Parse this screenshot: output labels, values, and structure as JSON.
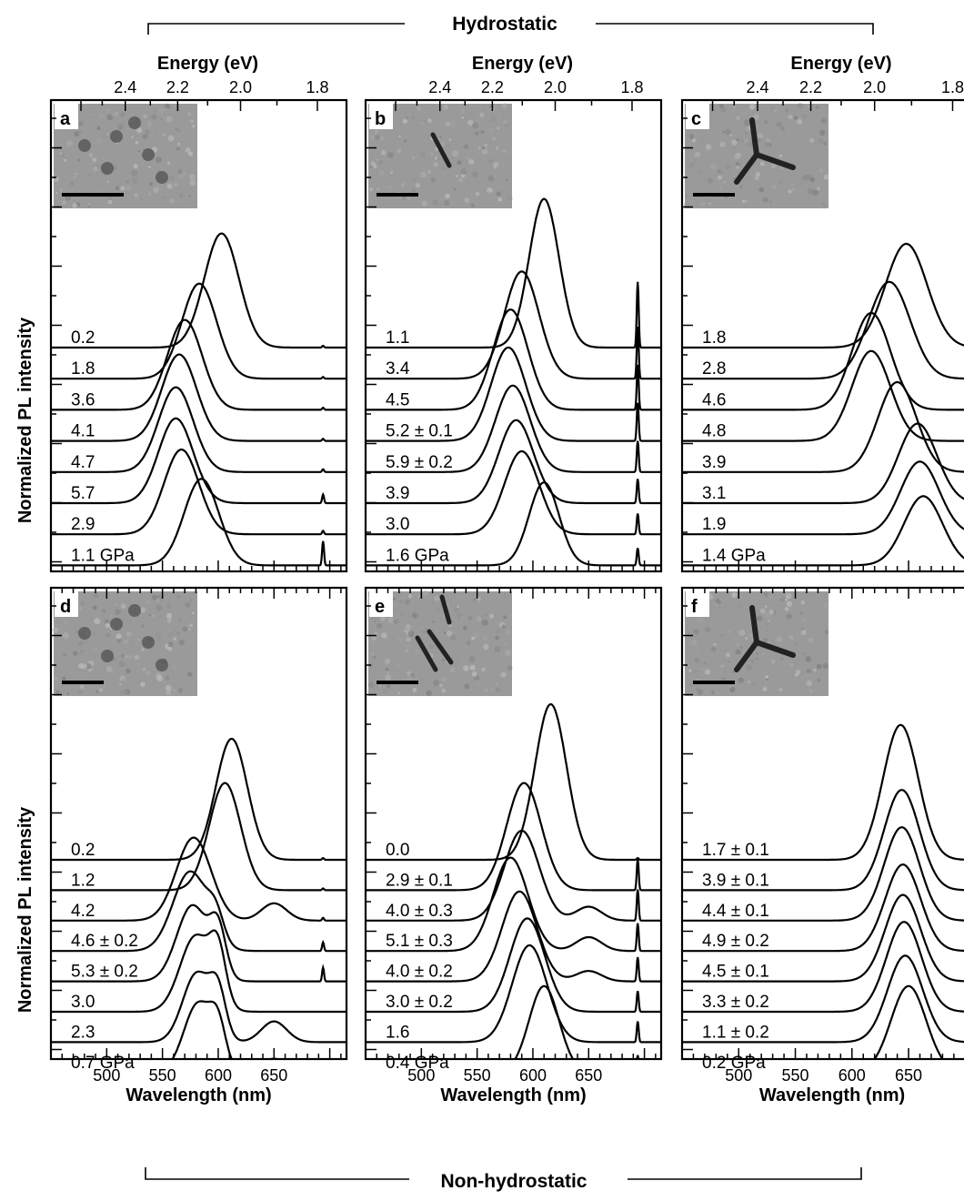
{
  "figure": {
    "group_top": "Hydrostatic",
    "group_bottom": "Non-hydrostatic",
    "ylabel": "Normalized PL intensity"
  },
  "chart_data": [
    {
      "panel": "a",
      "type": "line",
      "xlabel": "Wavelength (nm)",
      "top_xlabel": "Energy (eV)",
      "xticklabels": [
        "500",
        "550",
        "600",
        "650"
      ],
      "energy_ticklabels": [
        "2.4",
        "2.2",
        "2.0",
        "1.8"
      ],
      "show_bottom_ticklabels": false,
      "show_top_axis": true,
      "xlim": [
        450,
        715
      ],
      "series": [
        {
          "name": "0.2",
          "peak_nm": 603,
          "width_nm": 22,
          "amplitude": 3.3,
          "extra": [
            {
              "nm": 694,
              "amp": 0.05,
              "w": 1.2
            }
          ]
        },
        {
          "name": "1.8",
          "peak_nm": 583,
          "width_nm": 22,
          "amplitude": 2.75,
          "extra": [
            {
              "nm": 694,
              "amp": 0.05,
              "w": 1.2
            }
          ]
        },
        {
          "name": "3.6",
          "peak_nm": 570,
          "width_nm": 22,
          "amplitude": 2.6,
          "extra": [
            {
              "nm": 694,
              "amp": 0.06,
              "w": 1.2
            }
          ]
        },
        {
          "name": "4.1",
          "peak_nm": 565,
          "width_nm": 22,
          "amplitude": 2.5,
          "extra": [
            {
              "nm": 694,
              "amp": 0.06,
              "w": 1.2
            }
          ]
        },
        {
          "name": "4.7",
          "peak_nm": 562,
          "width_nm": 22,
          "amplitude": 2.45,
          "extra": [
            {
              "nm": 694,
              "amp": 0.08,
              "w": 1.2
            }
          ]
        },
        {
          "name": "5.7",
          "peak_nm": 562,
          "width_nm": 22,
          "amplitude": 2.45,
          "extra": [
            {
              "nm": 694,
              "amp": 0.25,
              "w": 1.2
            }
          ]
        },
        {
          "name": "2.9",
          "peak_nm": 567,
          "width_nm": 22,
          "amplitude": 2.45,
          "extra": [
            {
              "nm": 694,
              "amp": 0.1,
              "w": 1.2
            }
          ]
        },
        {
          "name": "1.1 GPa",
          "peak_nm": 585,
          "width_nm": 22,
          "amplitude": 2.5,
          "extra": [
            {
              "nm": 694,
              "amp": 0.7,
              "w": 1.2
            }
          ]
        }
      ]
    },
    {
      "panel": "b",
      "type": "line",
      "xlabel": "Wavelength (nm)",
      "top_xlabel": "Energy (eV)",
      "xticklabels": [
        "500",
        "550",
        "600",
        "650"
      ],
      "energy_ticklabels": [
        "2.4",
        "2.2",
        "2.0",
        "1.8"
      ],
      "show_bottom_ticklabels": false,
      "show_top_axis": true,
      "xlim": [
        450,
        715
      ],
      "series": [
        {
          "name": "1.1",
          "peak_nm": 610,
          "width_nm": 19,
          "amplitude": 4.3,
          "extra": [
            {
              "nm": 694,
              "amp": 1.9,
              "w": 1.2
            }
          ]
        },
        {
          "name": "3.4",
          "peak_nm": 590,
          "width_nm": 22,
          "amplitude": 3.1,
          "extra": [
            {
              "nm": 694,
              "amp": 1.5,
              "w": 1.2
            }
          ]
        },
        {
          "name": "4.5",
          "peak_nm": 580,
          "width_nm": 22,
          "amplitude": 2.9,
          "extra": [
            {
              "nm": 694,
              "amp": 1.3,
              "w": 1.2
            }
          ]
        },
        {
          "name": "5.2 ± 0.1",
          "peak_nm": 578,
          "width_nm": 22,
          "amplitude": 2.7,
          "extra": [
            {
              "nm": 694,
              "amp": 1.1,
              "w": 1.2
            }
          ]
        },
        {
          "name": "5.9 ± 0.2",
          "peak_nm": 582,
          "width_nm": 22,
          "amplitude": 2.5,
          "extra": [
            {
              "nm": 694,
              "amp": 0.9,
              "w": 1.2
            }
          ]
        },
        {
          "name": "3.9",
          "peak_nm": 585,
          "width_nm": 22,
          "amplitude": 2.4,
          "extra": [
            {
              "nm": 694,
              "amp": 0.7,
              "w": 1.2
            }
          ]
        },
        {
          "name": "3.0",
          "peak_nm": 590,
          "width_nm": 22,
          "amplitude": 2.4,
          "extra": [
            {
              "nm": 694,
              "amp": 0.6,
              "w": 1.2
            }
          ]
        },
        {
          "name": "1.6 GPa",
          "peak_nm": 610,
          "width_nm": 19,
          "amplitude": 2.4,
          "extra": [
            {
              "nm": 694,
              "amp": 0.5,
              "w": 1.2
            }
          ]
        }
      ]
    },
    {
      "panel": "c",
      "type": "line",
      "xlabel": "Wavelength (nm)",
      "top_xlabel": "Energy (eV)",
      "xticklabels": [
        "500",
        "550",
        "600",
        "650"
      ],
      "energy_ticklabels": [
        "2.4",
        "2.2",
        "2.0",
        "1.8"
      ],
      "show_bottom_ticklabels": false,
      "show_top_axis": true,
      "xlim": [
        450,
        715
      ],
      "series": [
        {
          "name": "1.8",
          "peak_nm": 648,
          "width_nm": 26,
          "amplitude": 3.0,
          "extra": [
            {
              "nm": 715,
              "amp": 0.8,
              "w": 3
            }
          ]
        },
        {
          "name": "2.8",
          "peak_nm": 633,
          "width_nm": 26,
          "amplitude": 2.8,
          "extra": [
            {
              "nm": 715,
              "amp": 0.8,
              "w": 3
            }
          ]
        },
        {
          "name": "4.6",
          "peak_nm": 617,
          "width_nm": 24,
          "amplitude": 2.8,
          "extra": [
            {
              "nm": 715,
              "amp": 0.8,
              "w": 3
            }
          ]
        },
        {
          "name": "4.8",
          "peak_nm": 617,
          "width_nm": 24,
          "amplitude": 2.6,
          "extra": [
            {
              "nm": 715,
              "amp": 0.8,
              "w": 3
            }
          ]
        },
        {
          "name": "3.9",
          "peak_nm": 640,
          "width_nm": 24,
          "amplitude": 2.6,
          "extra": [
            {
              "nm": 715,
              "amp": 0.8,
              "w": 3
            }
          ]
        },
        {
          "name": "3.1",
          "peak_nm": 658,
          "width_nm": 24,
          "amplitude": 2.3,
          "extra": [
            {
              "nm": 715,
              "amp": 0.8,
              "w": 3
            }
          ]
        },
        {
          "name": "1.9",
          "peak_nm": 660,
          "width_nm": 24,
          "amplitude": 2.1,
          "extra": [
            {
              "nm": 715,
              "amp": 0.8,
              "w": 3
            }
          ]
        },
        {
          "name": "1.4 GPa",
          "peak_nm": 663,
          "width_nm": 24,
          "amplitude": 2.0,
          "extra": [
            {
              "nm": 715,
              "amp": 0.8,
              "w": 3
            }
          ]
        }
      ]
    },
    {
      "panel": "d",
      "type": "line",
      "xlabel": "Wavelength (nm)",
      "top_xlabel": "",
      "xticklabels": [
        "500",
        "550",
        "600",
        "650"
      ],
      "energy_ticklabels": [],
      "show_bottom_ticklabels": true,
      "show_top_axis": false,
      "xlim": [
        450,
        715
      ],
      "series": [
        {
          "name": "0.2",
          "peak_nm": 612,
          "width_nm": 20,
          "amplitude": 3.5,
          "extra": [
            {
              "nm": 694,
              "amp": 0.05,
              "w": 1.2
            }
          ]
        },
        {
          "name": "1.2",
          "peak_nm": 606,
          "width_nm": 20,
          "amplitude": 3.1,
          "extra": [
            {
              "nm": 694,
              "amp": 0.05,
              "w": 1.2
            }
          ]
        },
        {
          "name": "4.2",
          "peak_nm": 578,
          "width_nm": 22,
          "amplitude": 2.4,
          "extra": [
            {
              "nm": 650,
              "amp": 0.5,
              "w": 16
            },
            {
              "nm": 694,
              "amp": 0.08,
              "w": 1.2
            }
          ]
        },
        {
          "name": "4.6 ± 0.2",
          "peak_nm": 575,
          "width_nm": 22,
          "amplitude": 2.3,
          "extra": [
            {
              "nm": 598,
              "amp": 0.7,
              "w": 10
            },
            {
              "nm": 694,
              "amp": 0.25,
              "w": 1.2
            }
          ]
        },
        {
          "name": "5.3 ± 0.2",
          "peak_nm": 577,
          "width_nm": 20,
          "amplitude": 2.2,
          "extra": [
            {
              "nm": 600,
              "amp": 1.3,
              "w": 10
            },
            {
              "nm": 694,
              "amp": 0.4,
              "w": 1.2
            }
          ]
        },
        {
          "name": "3.0",
          "peak_nm": 580,
          "width_nm": 20,
          "amplitude": 2.2,
          "extra": [
            {
              "nm": 600,
              "amp": 1.4,
              "w": 10
            }
          ]
        },
        {
          "name": "2.3",
          "peak_nm": 581,
          "width_nm": 18,
          "amplitude": 2.0,
          "extra": [
            {
              "nm": 600,
              "amp": 1.2,
              "w": 10
            },
            {
              "nm": 650,
              "amp": 0.6,
              "w": 16
            }
          ]
        },
        {
          "name": "0.7 GPa",
          "peak_nm": 582,
          "width_nm": 18,
          "amplitude": 2.0,
          "extra": [
            {
              "nm": 600,
              "amp": 1.1,
              "w": 10
            },
            {
              "nm": 650,
              "amp": 0.4,
              "w": 16
            },
            {
              "nm": 694,
              "amp": 0.1,
              "w": 1.2
            }
          ]
        }
      ]
    },
    {
      "panel": "e",
      "type": "line",
      "xlabel": "Wavelength (nm)",
      "top_xlabel": "",
      "xticklabels": [
        "500",
        "550",
        "600",
        "650"
      ],
      "energy_ticklabels": [],
      "show_bottom_ticklabels": true,
      "show_top_axis": false,
      "xlim": [
        450,
        715
      ],
      "series": [
        {
          "name": "0.0",
          "peak_nm": 616,
          "width_nm": 20,
          "amplitude": 4.5,
          "extra": [
            {
              "nm": 694,
              "amp": 0.05,
              "w": 1.2
            }
          ]
        },
        {
          "name": "2.9 ± 0.1",
          "peak_nm": 592,
          "width_nm": 22,
          "amplitude": 3.1,
          "extra": [
            {
              "nm": 694,
              "amp": 0.9,
              "w": 1.2
            }
          ]
        },
        {
          "name": "4.0 ± 0.3",
          "peak_nm": 590,
          "width_nm": 22,
          "amplitude": 2.6,
          "extra": [
            {
              "nm": 650,
              "amp": 0.4,
              "w": 16
            },
            {
              "nm": 694,
              "amp": 0.9,
              "w": 1.2
            }
          ]
        },
        {
          "name": "5.1 ± 0.3",
          "peak_nm": 580,
          "width_nm": 22,
          "amplitude": 2.7,
          "extra": [
            {
              "nm": 650,
              "amp": 0.4,
              "w": 16
            },
            {
              "nm": 694,
              "amp": 0.8,
              "w": 1.2
            }
          ]
        },
        {
          "name": "4.0 ± 0.2",
          "peak_nm": 588,
          "width_nm": 22,
          "amplitude": 2.6,
          "extra": [
            {
              "nm": 650,
              "amp": 0.3,
              "w": 16
            },
            {
              "nm": 694,
              "amp": 0.7,
              "w": 1.2
            }
          ]
        },
        {
          "name": "3.0 ± 0.2",
          "peak_nm": 595,
          "width_nm": 22,
          "amplitude": 2.7,
          "extra": [
            {
              "nm": 694,
              "amp": 0.6,
              "w": 1.2
            }
          ]
        },
        {
          "name": "1.6",
          "peak_nm": 597,
          "width_nm": 22,
          "amplitude": 2.8,
          "extra": [
            {
              "nm": 694,
              "amp": 0.6,
              "w": 1.2
            }
          ]
        },
        {
          "name": "0.4 GPa",
          "peak_nm": 610,
          "width_nm": 19,
          "amplitude": 2.5,
          "extra": [
            {
              "nm": 694,
              "amp": 0.5,
              "w": 1.2
            }
          ]
        }
      ]
    },
    {
      "panel": "f",
      "type": "line",
      "xlabel": "Wavelength (nm)",
      "top_xlabel": "",
      "xticklabels": [
        "500",
        "550",
        "600",
        "650"
      ],
      "energy_ticklabels": [],
      "show_bottom_ticklabels": true,
      "show_top_axis": false,
      "xlim": [
        450,
        715
      ],
      "series": [
        {
          "name": "1.7 ± 0.1",
          "peak_nm": 643,
          "width_nm": 22,
          "amplitude": 3.9,
          "extra": [
            {
              "nm": 714,
              "amp": 2.0,
              "w": 1.5
            }
          ]
        },
        {
          "name": "3.9 ± 0.1",
          "peak_nm": 644,
          "width_nm": 22,
          "amplitude": 2.9,
          "extra": [
            {
              "nm": 714,
              "amp": 1.3,
              "w": 1.5
            }
          ]
        },
        {
          "name": "4.4 ± 0.1",
          "peak_nm": 644,
          "width_nm": 22,
          "amplitude": 2.7,
          "extra": [
            {
              "nm": 714,
              "amp": 1.2,
              "w": 1.5
            }
          ]
        },
        {
          "name": "4.9 ± 0.2",
          "peak_nm": 645,
          "width_nm": 22,
          "amplitude": 2.5,
          "extra": [
            {
              "nm": 714,
              "amp": 1.1,
              "w": 1.5
            }
          ]
        },
        {
          "name": "4.5 ± 0.1",
          "peak_nm": 645,
          "width_nm": 22,
          "amplitude": 2.5,
          "extra": [
            {
              "nm": 714,
              "amp": 1.0,
              "w": 1.5
            }
          ]
        },
        {
          "name": "3.3 ± 0.2",
          "peak_nm": 646,
          "width_nm": 22,
          "amplitude": 2.6,
          "extra": [
            {
              "nm": 714,
              "amp": 0.9,
              "w": 1.5
            }
          ]
        },
        {
          "name": "1.1 ± 0.2",
          "peak_nm": 647,
          "width_nm": 22,
          "amplitude": 2.5,
          "extra": [
            {
              "nm": 714,
              "amp": 0.8,
              "w": 1.5
            }
          ]
        },
        {
          "name": "0.2 GPa",
          "peak_nm": 650,
          "width_nm": 22,
          "amplitude": 2.5,
          "extra": [
            {
              "nm": 714,
              "amp": 0.7,
              "w": 1.5
            }
          ]
        }
      ]
    }
  ]
}
